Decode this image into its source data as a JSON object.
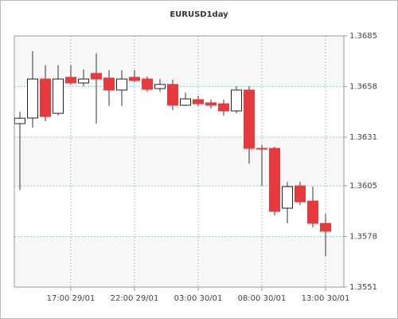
{
  "chart_data": {
    "type": "candlestick",
    "title": "EURUSD1day",
    "categories": [
      null,
      null,
      null,
      null,
      "17:00 29/01",
      null,
      null,
      null,
      null,
      "22:00 29/01",
      null,
      null,
      null,
      null,
      "03:00 30/01",
      null,
      null,
      null,
      null,
      "08:00 30/01",
      null,
      null,
      null,
      null,
      "13:00 30/01"
    ],
    "open": [
      1.36382,
      1.36412,
      1.3662,
      1.36437,
      1.36629,
      1.36599,
      1.3665,
      1.36625,
      1.36561,
      1.36629,
      1.3662,
      1.36569,
      1.36591,
      1.3648,
      1.3651,
      1.36493,
      1.36488,
      1.3645,
      1.36561,
      1.3625,
      1.3625,
      1.35931,
      1.3605,
      1.35969,
      1.3585
    ],
    "high": [
      1.36446,
      1.36769,
      1.36693,
      1.36693,
      1.36693,
      1.36671,
      1.36757,
      1.36667,
      1.36667,
      1.36667,
      1.36633,
      1.3662,
      1.36616,
      1.36548,
      1.36531,
      1.3651,
      1.3651,
      1.36582,
      1.36582,
      1.36267,
      1.36259,
      1.36071,
      1.36071,
      1.36046,
      1.35901
    ],
    "low": [
      1.36029,
      1.36361,
      1.36395,
      1.36425,
      1.3659,
      1.36582,
      1.36382,
      1.36476,
      1.36476,
      1.36603,
      1.36552,
      1.36552,
      1.36454,
      1.36476,
      1.36476,
      1.36463,
      1.36425,
      1.36437,
      1.36169,
      1.3605,
      1.35893,
      1.3585,
      1.35948,
      1.35829,
      1.35676
    ],
    "close": [
      1.36411,
      1.3662,
      1.3642,
      1.3662,
      1.36599,
      1.3662,
      1.3662,
      1.36561,
      1.3662,
      1.36612,
      1.36565,
      1.36591,
      1.3648,
      1.36514,
      1.36488,
      1.3648,
      1.3645,
      1.36561,
      1.3625,
      1.36246,
      1.35914,
      1.36046,
      1.35965,
      1.3585,
      1.35808
    ],
    "up_color": "#ffffff",
    "down_color": "#e8393f",
    "ylim": [
      1.3551,
      1.3685
    ],
    "yticks": [
      1.3551,
      1.3578,
      1.3605,
      1.3631,
      1.3658,
      1.3685
    ],
    "grid": true
  }
}
